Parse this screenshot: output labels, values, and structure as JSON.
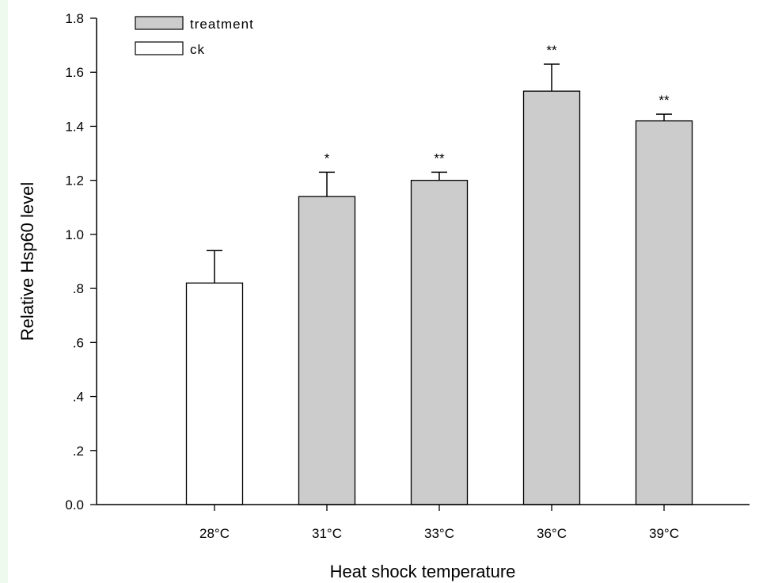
{
  "chart_data": {
    "type": "bar",
    "categories": [
      "28°C",
      "31°C",
      "33°C",
      "36°C",
      "39°C"
    ],
    "values": [
      0.82,
      1.14,
      1.2,
      1.53,
      1.42
    ],
    "errors": [
      0.12,
      0.09,
      0.03,
      0.1,
      0.025
    ],
    "bar_series": [
      "ck",
      "treatment",
      "treatment",
      "treatment",
      "treatment"
    ],
    "significance": [
      "",
      "*",
      "**",
      "**",
      "**"
    ],
    "series": [
      {
        "name": "treatment",
        "color": "#cccccc"
      },
      {
        "name": "ck",
        "color": "#ffffff"
      }
    ],
    "xlabel": "Heat shock temperature",
    "ylabel": "Relative Hsp60 level",
    "ylim": [
      0,
      1.8
    ],
    "yticks": [
      0,
      0.2,
      0.4,
      0.6,
      0.8,
      1.0,
      1.2,
      1.4,
      1.6,
      1.8
    ],
    "ytick_labels": [
      "0.0",
      ".2",
      ".4",
      ".6",
      ".8",
      "1.0",
      "1.2",
      "1.4",
      "1.6",
      "1.8"
    ],
    "grid": false,
    "legend_position": "top-left"
  }
}
